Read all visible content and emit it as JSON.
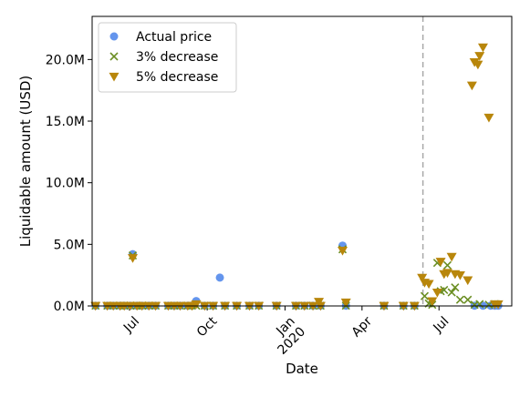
{
  "chart_data": {
    "type": "scatter",
    "xlabel": "Date",
    "ylabel": "Liquidable amount (USD)",
    "xlim": [
      "2019-05-18",
      "2020-09-25"
    ],
    "ylim": [
      0,
      23.5
    ],
    "y_unit": "M",
    "x_ticks": [
      {
        "date": "2019-07-01",
        "label": "Jul",
        "label2": ""
      },
      {
        "date": "2019-10-01",
        "label": "Oct",
        "label2": ""
      },
      {
        "date": "2020-01-01",
        "label": "Jan",
        "label2": "2020"
      },
      {
        "date": "2020-04-01",
        "label": "Apr",
        "label2": ""
      },
      {
        "date": "2020-07-01",
        "label": "Jul",
        "label2": ""
      }
    ],
    "y_ticks": [
      {
        "value": 0,
        "label": "0.0M"
      },
      {
        "value": 5,
        "label": "5.0M"
      },
      {
        "value": 10,
        "label": "10.0M"
      },
      {
        "value": 15,
        "label": "15.0M"
      },
      {
        "value": 20,
        "label": "20.0M"
      }
    ],
    "vline": {
      "date": "2020-06-12",
      "style": "dashed",
      "color": "#a9a9a9"
    },
    "legend": {
      "position": "top-left"
    },
    "series": [
      {
        "name": "Actual price",
        "marker": "circle",
        "color": "#6495ED",
        "points": [
          [
            "2019-05-22",
            0.02
          ],
          [
            "2019-06-05",
            0.02
          ],
          [
            "2019-06-12",
            0.02
          ],
          [
            "2019-06-20",
            0.02
          ],
          [
            "2019-06-25",
            0.02
          ],
          [
            "2019-07-02",
            0.02
          ],
          [
            "2019-07-05",
            4.2
          ],
          [
            "2019-07-10",
            0.02
          ],
          [
            "2019-07-16",
            0.02
          ],
          [
            "2019-07-24",
            0.02
          ],
          [
            "2019-08-01",
            0.02
          ],
          [
            "2019-08-16",
            0.02
          ],
          [
            "2019-08-23",
            0.02
          ],
          [
            "2019-08-30",
            0.02
          ],
          [
            "2019-09-08",
            0.02
          ],
          [
            "2019-09-13",
            0.02
          ],
          [
            "2019-09-18",
            0.4
          ],
          [
            "2019-09-28",
            0.02
          ],
          [
            "2019-10-08",
            0.02
          ],
          [
            "2019-10-16",
            2.3
          ],
          [
            "2019-10-22",
            0.02
          ],
          [
            "2019-11-05",
            0.02
          ],
          [
            "2019-11-20",
            0.02
          ],
          [
            "2019-12-01",
            0.02
          ],
          [
            "2019-12-22",
            0.02
          ],
          [
            "2020-01-14",
            0.02
          ],
          [
            "2020-01-24",
            0.02
          ],
          [
            "2020-02-03",
            0.02
          ],
          [
            "2020-02-12",
            0.02
          ],
          [
            "2020-03-09",
            4.9
          ],
          [
            "2020-03-13",
            0.02
          ],
          [
            "2020-04-27",
            0.02
          ],
          [
            "2020-05-20",
            0.02
          ],
          [
            "2020-06-02",
            0.02
          ],
          [
            "2020-08-12",
            0.02
          ],
          [
            "2020-08-22",
            0.02
          ],
          [
            "2020-08-31",
            0.02
          ],
          [
            "2020-09-05",
            0.02
          ],
          [
            "2020-09-09",
            0.02
          ]
        ]
      },
      {
        "name": "3% decrease",
        "marker": "x",
        "color": "#6B8E23",
        "points": [
          [
            "2019-05-22",
            0.02
          ],
          [
            "2019-06-05",
            0.02
          ],
          [
            "2019-06-12",
            0.02
          ],
          [
            "2019-06-20",
            0.02
          ],
          [
            "2019-06-25",
            0.02
          ],
          [
            "2019-07-02",
            0.02
          ],
          [
            "2019-07-05",
            4.1
          ],
          [
            "2019-07-10",
            0.02
          ],
          [
            "2019-07-16",
            0.02
          ],
          [
            "2019-07-24",
            0.02
          ],
          [
            "2019-08-01",
            0.02
          ],
          [
            "2019-08-16",
            0.02
          ],
          [
            "2019-08-23",
            0.02
          ],
          [
            "2019-08-30",
            0.02
          ],
          [
            "2019-09-08",
            0.02
          ],
          [
            "2019-09-13",
            0.02
          ],
          [
            "2019-09-18",
            0.02
          ],
          [
            "2019-09-28",
            0.02
          ],
          [
            "2019-10-08",
            0.02
          ],
          [
            "2019-10-22",
            0.02
          ],
          [
            "2019-11-05",
            0.02
          ],
          [
            "2019-11-20",
            0.02
          ],
          [
            "2019-12-01",
            0.02
          ],
          [
            "2019-12-22",
            0.02
          ],
          [
            "2020-01-14",
            0.02
          ],
          [
            "2020-01-24",
            0.02
          ],
          [
            "2020-02-03",
            0.02
          ],
          [
            "2020-02-12",
            0.02
          ],
          [
            "2020-03-09",
            4.6
          ],
          [
            "2020-03-13",
            0.02
          ],
          [
            "2020-04-27",
            0.02
          ],
          [
            "2020-05-20",
            0.02
          ],
          [
            "2020-06-02",
            0.02
          ],
          [
            "2020-06-14",
            0.8
          ],
          [
            "2020-06-19",
            0.2
          ],
          [
            "2020-06-23",
            0.1
          ],
          [
            "2020-06-29",
            3.5
          ],
          [
            "2020-07-03",
            1.2
          ],
          [
            "2020-07-07",
            1.3
          ],
          [
            "2020-07-11",
            3.3
          ],
          [
            "2020-07-16",
            1.1
          ],
          [
            "2020-07-20",
            1.5
          ],
          [
            "2020-07-26",
            0.5
          ],
          [
            "2020-08-04",
            0.5
          ],
          [
            "2020-08-12",
            0.1
          ],
          [
            "2020-08-18",
            0.15
          ],
          [
            "2020-08-29",
            0.1
          ],
          [
            "2020-09-05",
            0.15
          ]
        ]
      },
      {
        "name": "5% decrease",
        "marker": "triangle-down",
        "color": "#B8860B",
        "points": [
          [
            "2019-05-22",
            0.02
          ],
          [
            "2019-06-05",
            0.02
          ],
          [
            "2019-06-12",
            0.02
          ],
          [
            "2019-06-20",
            0.02
          ],
          [
            "2019-06-25",
            0.02
          ],
          [
            "2019-07-02",
            0.02
          ],
          [
            "2019-07-05",
            3.9
          ],
          [
            "2019-07-10",
            0.02
          ],
          [
            "2019-07-16",
            0.02
          ],
          [
            "2019-07-24",
            0.02
          ],
          [
            "2019-08-01",
            0.02
          ],
          [
            "2019-08-16",
            0.02
          ],
          [
            "2019-08-23",
            0.02
          ],
          [
            "2019-08-30",
            0.02
          ],
          [
            "2019-09-08",
            0.02
          ],
          [
            "2019-09-13",
            0.02
          ],
          [
            "2019-09-18",
            0.15
          ],
          [
            "2019-09-28",
            0.02
          ],
          [
            "2019-10-08",
            0.02
          ],
          [
            "2019-10-22",
            0.02
          ],
          [
            "2019-11-05",
            0.02
          ],
          [
            "2019-11-20",
            0.02
          ],
          [
            "2019-12-01",
            0.02
          ],
          [
            "2019-12-22",
            0.02
          ],
          [
            "2020-01-14",
            0.02
          ],
          [
            "2020-01-24",
            0.02
          ],
          [
            "2020-02-03",
            0.02
          ],
          [
            "2020-02-10",
            0.35
          ],
          [
            "2020-02-12",
            0.02
          ],
          [
            "2020-03-09",
            4.5
          ],
          [
            "2020-03-13",
            0.3
          ],
          [
            "2020-04-27",
            0.02
          ],
          [
            "2020-05-20",
            0.02
          ],
          [
            "2020-06-02",
            0.02
          ],
          [
            "2020-06-11",
            2.3
          ],
          [
            "2020-06-14",
            1.9
          ],
          [
            "2020-06-19",
            1.8
          ],
          [
            "2020-06-23",
            0.4
          ],
          [
            "2020-06-29",
            1.1
          ],
          [
            "2020-07-03",
            3.6
          ],
          [
            "2020-07-07",
            2.6
          ],
          [
            "2020-07-11",
            2.7
          ],
          [
            "2020-07-16",
            4.0
          ],
          [
            "2020-07-20",
            2.6
          ],
          [
            "2020-07-26",
            2.5
          ],
          [
            "2020-08-04",
            2.1
          ],
          [
            "2020-08-09",
            17.9
          ],
          [
            "2020-08-12",
            19.8
          ],
          [
            "2020-08-16",
            19.6
          ],
          [
            "2020-08-18",
            20.3
          ],
          [
            "2020-08-22",
            21.0
          ],
          [
            "2020-08-29",
            15.3
          ],
          [
            "2020-09-05",
            0.15
          ],
          [
            "2020-09-09",
            0.15
          ]
        ]
      }
    ]
  }
}
